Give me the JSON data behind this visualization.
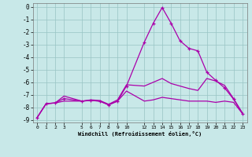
{
  "background_color": "#c8e8e8",
  "grid_color": "#98c4c4",
  "line_color": "#aa00aa",
  "xlabel": "Windchill (Refroidissement éolien,°C)",
  "ylim": [
    -9.2,
    0.3
  ],
  "xlim": [
    -0.5,
    23.5
  ],
  "yticks": [
    0,
    -1,
    -2,
    -3,
    -4,
    -5,
    -6,
    -7,
    -8,
    -9
  ],
  "xticks": [
    0,
    1,
    2,
    3,
    5,
    6,
    7,
    8,
    9,
    10,
    12,
    13,
    14,
    15,
    16,
    17,
    18,
    19,
    20,
    21,
    22,
    23
  ],
  "spike_x": [
    0,
    1,
    2,
    3,
    5,
    6,
    7,
    8,
    9,
    10,
    12,
    13,
    14,
    15,
    16,
    17,
    18,
    19,
    20,
    21,
    22,
    23
  ],
  "spike_y": [
    -8.8,
    -7.7,
    -7.65,
    -7.3,
    -7.5,
    -7.45,
    -7.5,
    -7.8,
    -7.5,
    -6.3,
    -2.8,
    -1.3,
    -0.05,
    -1.3,
    -2.7,
    -3.3,
    -3.5,
    -5.2,
    -5.85,
    -6.45,
    -7.35,
    -8.5
  ],
  "curve_upper_x": [
    0,
    1,
    2,
    3,
    5,
    6,
    7,
    8,
    9,
    10,
    12,
    13,
    14,
    15,
    16,
    17,
    18,
    19,
    20,
    21,
    22,
    23
  ],
  "curve_upper_y": [
    -8.8,
    -7.7,
    -7.65,
    -7.1,
    -7.5,
    -7.4,
    -7.45,
    -7.75,
    -7.4,
    -6.2,
    -6.3,
    -6.0,
    -5.7,
    -6.1,
    -6.3,
    -6.5,
    -6.65,
    -5.7,
    -5.9,
    -6.25,
    -7.3,
    -8.45
  ],
  "curve_lower_x": [
    0,
    1,
    2,
    3,
    5,
    6,
    7,
    8,
    9,
    10,
    12,
    13,
    14,
    15,
    16,
    17,
    18,
    19,
    20,
    21,
    22,
    23
  ],
  "curve_lower_y": [
    -8.8,
    -7.7,
    -7.65,
    -7.5,
    -7.5,
    -7.45,
    -7.5,
    -7.8,
    -7.5,
    -6.7,
    -7.5,
    -7.4,
    -7.2,
    -7.3,
    -7.4,
    -7.5,
    -7.5,
    -7.5,
    -7.6,
    -7.5,
    -7.6,
    -8.5
  ]
}
